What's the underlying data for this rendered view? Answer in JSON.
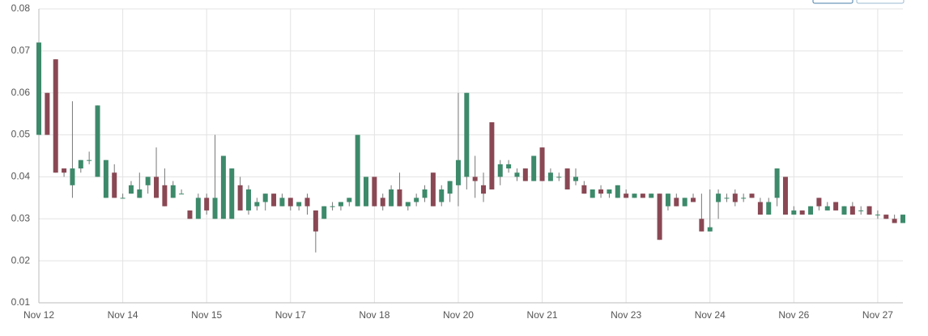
{
  "chart_data": {
    "type": "candlestick",
    "categories": [
      "Nov 12",
      null,
      null,
      null,
      null,
      null,
      null,
      null,
      null,
      null,
      "Nov 14",
      null,
      null,
      null,
      null,
      null,
      null,
      null,
      null,
      null,
      "Nov 15",
      null,
      null,
      null,
      null,
      null,
      null,
      null,
      null,
      null,
      "Nov 17",
      null,
      null,
      null,
      null,
      null,
      null,
      null,
      null,
      null,
      "Nov 18",
      null,
      null,
      null,
      null,
      null,
      null,
      null,
      null,
      null,
      "Nov 20",
      null,
      null,
      null,
      null,
      null,
      null,
      null,
      null,
      null,
      "Nov 21",
      null,
      null,
      null,
      null,
      null,
      null,
      null,
      null,
      null,
      "Nov 23",
      null,
      null,
      null,
      null,
      null,
      null,
      null,
      null,
      null,
      "Nov 24",
      null,
      null,
      null,
      null,
      null,
      null,
      null,
      null,
      null,
      "Nov 26",
      null,
      null,
      null,
      null,
      null,
      null,
      null,
      null,
      null,
      "Nov 27",
      null,
      null,
      null
    ],
    "open": [
      0.05,
      0.06,
      0.068,
      0.042,
      0.038,
      0.042,
      0.044,
      0.04,
      0.035,
      0.041,
      0.035,
      0.036,
      0.035,
      0.038,
      0.04,
      0.038,
      0.035,
      0.036,
      0.032,
      0.03,
      0.035,
      0.03,
      0.03,
      0.03,
      0.038,
      0.032,
      0.033,
      0.034,
      0.036,
      0.033,
      0.035,
      0.033,
      0.035,
      0.032,
      0.03,
      0.033,
      0.033,
      0.034,
      0.033,
      0.033,
      0.04,
      0.035,
      0.033,
      0.037,
      0.033,
      0.034,
      0.035,
      0.041,
      0.034,
      0.036,
      0.038,
      0.04,
      0.04,
      0.038,
      0.053,
      0.04,
      0.042,
      0.04,
      0.042,
      0.039,
      0.047,
      0.039,
      0.04,
      0.042,
      0.039,
      0.038,
      0.035,
      0.037,
      0.036,
      0.035,
      0.036,
      0.035,
      0.036,
      0.035,
      0.036,
      0.033,
      0.035,
      0.033,
      0.035,
      0.03,
      0.027,
      0.034,
      0.035,
      0.036,
      0.035,
      0.036,
      0.034,
      0.031,
      0.035,
      0.04,
      0.031,
      0.032,
      0.031,
      0.035,
      0.032,
      0.034,
      0.031,
      0.033,
      0.032,
      0.033,
      0.031,
      0.031,
      0.03,
      0.029
    ],
    "high": [
      0.072,
      0.06,
      0.068,
      0.042,
      0.058,
      0.044,
      0.046,
      0.057,
      0.044,
      0.043,
      0.036,
      0.039,
      0.041,
      0.04,
      0.047,
      0.042,
      0.039,
      0.037,
      0.032,
      0.036,
      0.036,
      0.05,
      0.045,
      0.042,
      0.04,
      0.038,
      0.035,
      0.036,
      0.036,
      0.036,
      0.035,
      0.034,
      0.036,
      0.032,
      0.033,
      0.034,
      0.034,
      0.035,
      0.05,
      0.04,
      0.04,
      0.036,
      0.038,
      0.041,
      0.034,
      0.036,
      0.038,
      0.041,
      0.038,
      0.039,
      0.06,
      0.06,
      0.045,
      0.041,
      0.053,
      0.044,
      0.044,
      0.042,
      0.042,
      0.045,
      0.047,
      0.042,
      0.041,
      0.042,
      0.042,
      0.039,
      0.037,
      0.038,
      0.037,
      0.038,
      0.037,
      0.036,
      0.036,
      0.036,
      0.036,
      0.036,
      0.036,
      0.035,
      0.036,
      0.036,
      0.037,
      0.037,
      0.036,
      0.037,
      0.036,
      0.036,
      0.035,
      0.035,
      0.042,
      0.04,
      0.033,
      0.032,
      0.033,
      0.035,
      0.034,
      0.034,
      0.033,
      0.034,
      0.033,
      0.033,
      0.032,
      0.031,
      0.031,
      0.031
    ],
    "low": [
      0.05,
      0.05,
      0.041,
      0.04,
      0.035,
      0.041,
      0.043,
      0.04,
      0.035,
      0.035,
      0.035,
      0.036,
      0.035,
      0.036,
      0.035,
      0.033,
      0.035,
      0.036,
      0.03,
      0.03,
      0.031,
      0.03,
      0.03,
      0.03,
      0.032,
      0.031,
      0.032,
      0.032,
      0.033,
      0.033,
      0.032,
      0.032,
      0.031,
      0.022,
      0.03,
      0.032,
      0.032,
      0.033,
      0.033,
      0.033,
      0.033,
      0.032,
      0.033,
      0.033,
      0.032,
      0.033,
      0.034,
      0.033,
      0.033,
      0.034,
      0.033,
      0.037,
      0.035,
      0.034,
      0.037,
      0.038,
      0.041,
      0.039,
      0.039,
      0.039,
      0.039,
      0.039,
      0.039,
      0.037,
      0.038,
      0.036,
      0.035,
      0.035,
      0.035,
      0.035,
      0.035,
      0.035,
      0.035,
      0.035,
      0.025,
      0.032,
      0.033,
      0.033,
      0.034,
      0.027,
      0.027,
      0.03,
      0.034,
      0.033,
      0.034,
      0.035,
      0.031,
      0.031,
      0.033,
      0.031,
      0.031,
      0.031,
      0.031,
      0.032,
      0.032,
      0.032,
      0.031,
      0.031,
      0.031,
      0.031,
      0.03,
      0.03,
      0.029,
      0.029
    ],
    "close": [
      0.072,
      0.05,
      0.041,
      0.041,
      0.042,
      0.044,
      0.044,
      0.057,
      0.044,
      0.035,
      0.035,
      0.038,
      0.037,
      0.04,
      0.035,
      0.033,
      0.038,
      0.036,
      0.03,
      0.035,
      0.032,
      0.035,
      0.045,
      0.042,
      0.032,
      0.037,
      0.034,
      0.036,
      0.033,
      0.035,
      0.033,
      0.034,
      0.033,
      0.027,
      0.033,
      0.033,
      0.034,
      0.035,
      0.05,
      0.04,
      0.033,
      0.033,
      0.037,
      0.033,
      0.034,
      0.035,
      0.037,
      0.033,
      0.037,
      0.039,
      0.044,
      0.06,
      0.039,
      0.036,
      0.037,
      0.043,
      0.043,
      0.041,
      0.039,
      0.045,
      0.039,
      0.041,
      0.04,
      0.037,
      0.04,
      0.036,
      0.037,
      0.036,
      0.037,
      0.038,
      0.035,
      0.036,
      0.035,
      0.036,
      0.025,
      0.036,
      0.033,
      0.035,
      0.034,
      0.027,
      0.028,
      0.036,
      0.035,
      0.034,
      0.035,
      0.035,
      0.031,
      0.034,
      0.042,
      0.031,
      0.032,
      0.031,
      0.033,
      0.033,
      0.033,
      0.032,
      0.033,
      0.031,
      0.032,
      0.031,
      0.031,
      0.03,
      0.029,
      0.031
    ],
    "up_color": "#3d8a6b",
    "down_color": "#8a4854",
    "ylim": [
      0.01,
      0.08
    ],
    "yticks": [
      0.01,
      0.02,
      0.03,
      0.04,
      0.05,
      0.06,
      0.07,
      0.08
    ],
    "grid": true
  }
}
